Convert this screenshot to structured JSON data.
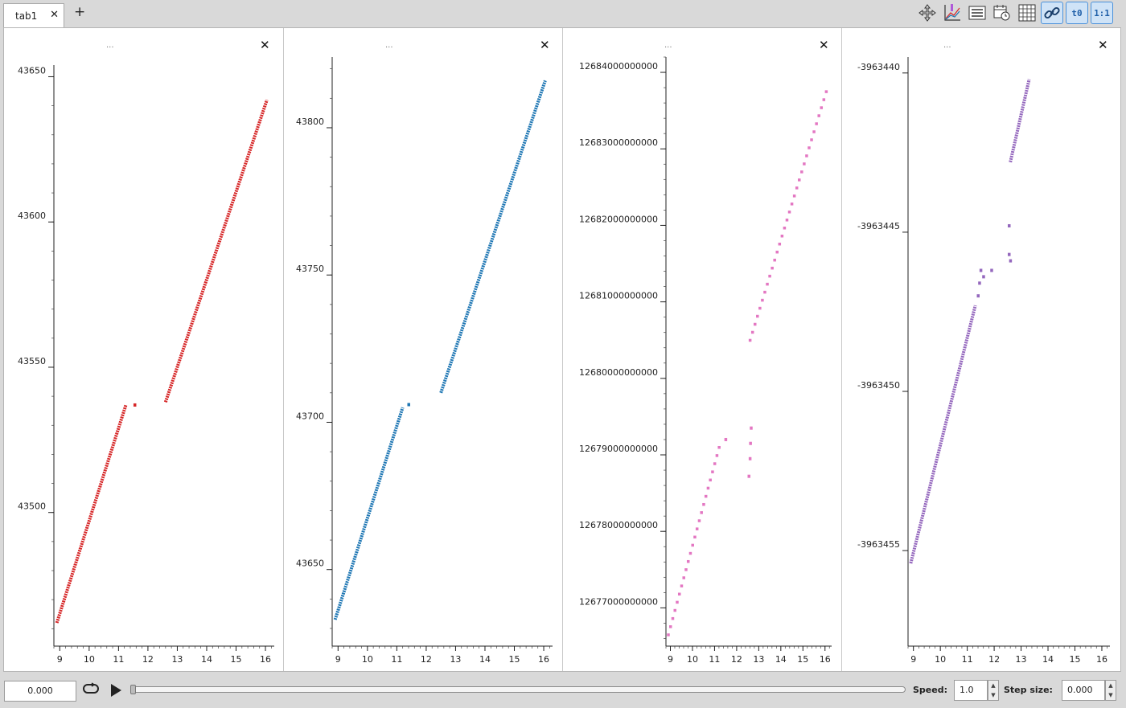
{
  "tabs": [
    {
      "label": "tab1"
    }
  ],
  "toolbar_icons": [
    "move-icon",
    "plot-icon",
    "list-icon",
    "calendar-icon",
    "grid-icon",
    "link-icon",
    "t0-icon",
    "one-to-one-icon"
  ],
  "toolbar_text": {
    "t0": "t0",
    "ratio": "1:1"
  },
  "panel_title": "...",
  "playback": {
    "time_value": "0.000",
    "speed_label": "Speed:",
    "speed_value": "1.0",
    "step_label": "Step size:",
    "step_value": "0.000"
  },
  "chart_data": [
    {
      "type": "scatter",
      "color": "#d62728",
      "xlim": [
        8.8,
        16.3
      ],
      "ylim": [
        43454,
        43654
      ],
      "xticks": [
        9,
        10,
        11,
        12,
        13,
        14,
        15,
        16
      ],
      "yticks": [
        43500,
        43550,
        43600,
        43650
      ],
      "segments": [
        {
          "x": [
            8.9,
            11.25
          ],
          "y": [
            43462,
            43537
          ]
        },
        {
          "x": [
            12.6,
            16.05
          ],
          "y": [
            43538,
            43642
          ]
        }
      ],
      "points": [
        {
          "x": 11.55,
          "y": 43537
        }
      ]
    },
    {
      "type": "scatter",
      "color": "#1f77b4",
      "xlim": [
        8.8,
        16.3
      ],
      "ylim": [
        43624,
        43824
      ],
      "xticks": [
        9,
        10,
        11,
        12,
        13,
        14,
        15,
        16
      ],
      "yticks": [
        43650,
        43700,
        43750,
        43800
      ],
      "segments": [
        {
          "x": [
            8.9,
            11.2
          ],
          "y": [
            43633,
            43705
          ]
        },
        {
          "x": [
            12.5,
            16.05
          ],
          "y": [
            43710,
            43816
          ]
        }
      ],
      "points": [
        {
          "x": 11.4,
          "y": 43706
        }
      ]
    },
    {
      "type": "scatter",
      "color": "#e377c2",
      "xlim": [
        8.8,
        16.3
      ],
      "ylim": [
        12676500000000,
        12684200000000
      ],
      "xticks": [
        9,
        10,
        11,
        12,
        13,
        14,
        15,
        16
      ],
      "yticks": [
        12677000000000,
        12678000000000,
        12679000000000,
        12680000000000,
        12681000000000,
        12682000000000,
        12683000000000,
        12684000000000
      ],
      "segments_dotted": [
        {
          "x": [
            8.9,
            11.2
          ],
          "y": [
            12676650000000,
            12679100000000
          ],
          "n": 24
        },
        {
          "x": [
            12.6,
            16.05
          ],
          "y": [
            12680500000000,
            12683750000000
          ],
          "n": 32
        }
      ],
      "points": [
        {
          "x": 11.5,
          "y": 12679200000000
        },
        {
          "x": 12.55,
          "y": 12678720000000
        },
        {
          "x": 12.6,
          "y": 12678950000000
        },
        {
          "x": 12.62,
          "y": 12679150000000
        },
        {
          "x": 12.65,
          "y": 12679350000000
        }
      ]
    },
    {
      "type": "scatter",
      "color": "#9467bd",
      "xlim": [
        8.8,
        16.3
      ],
      "ylim": [
        -3963458,
        -3963439.5
      ],
      "xticks": [
        9,
        10,
        11,
        12,
        13,
        14,
        15,
        16
      ],
      "yticks": [
        -3963440,
        -3963445,
        -3963450,
        -3963455
      ],
      "segments": [
        {
          "x": [
            8.9,
            11.3
          ],
          "y": [
            -3963455.4,
            -3963447.3
          ]
        },
        {
          "x": [
            12.6,
            13.3
          ],
          "y": [
            -3963442.8,
            -3963440.2
          ]
        }
      ],
      "points": [
        {
          "x": 11.4,
          "y": -3963447.0
        },
        {
          "x": 11.45,
          "y": -3963446.6
        },
        {
          "x": 11.5,
          "y": -3963446.2
        },
        {
          "x": 11.6,
          "y": -3963446.4
        },
        {
          "x": 11.9,
          "y": -3963446.2
        },
        {
          "x": 12.55,
          "y": -3963444.8
        },
        {
          "x": 12.55,
          "y": -3963445.7
        },
        {
          "x": 12.6,
          "y": -3963445.9
        }
      ]
    }
  ]
}
